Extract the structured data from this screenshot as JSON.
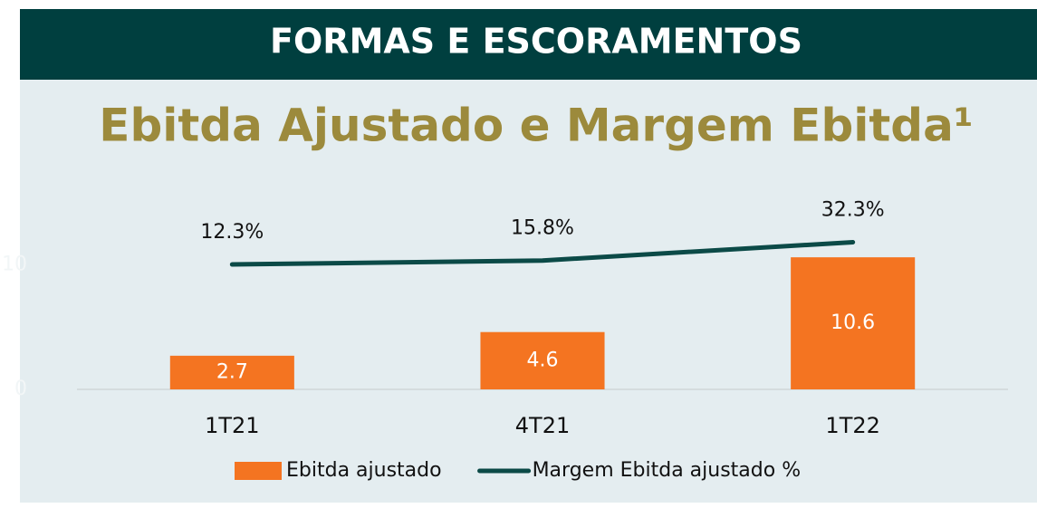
{
  "header": "FORMAS E ESCORAMENTOS",
  "chart_data": {
    "type": "bar_line",
    "title": "Ebitda Ajustado e Margem Ebitda¹",
    "categories": [
      "1T21",
      "4T21",
      "1T22"
    ],
    "series": [
      {
        "name": "Ebitda ajustado",
        "color": "#f47421",
        "type": "bar",
        "values": [
          2.7,
          4.6,
          10.6
        ]
      },
      {
        "name": "Margem Ebitda ajustado %",
        "color": "#0b4a47",
        "type": "line",
        "axis": "y2",
        "values": [
          12.3,
          15.8,
          32.3
        ],
        "value_labels": [
          "12.3%",
          "15.8%",
          "32.3%"
        ]
      }
    ],
    "ylim": [
      0,
      12.5
    ],
    "yticks": [
      0,
      10
    ],
    "y2lim": [
      -100,
      40
    ],
    "legend": "bottom"
  }
}
